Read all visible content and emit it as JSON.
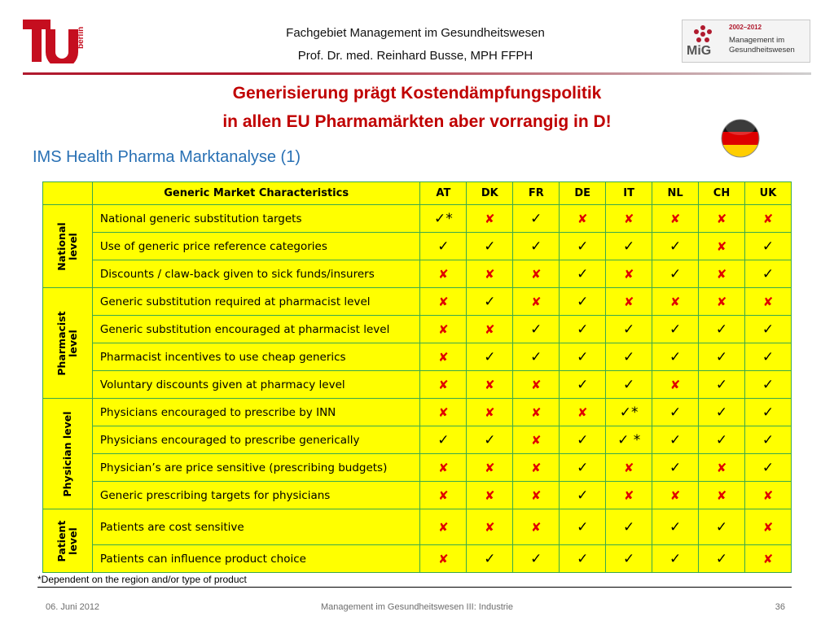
{
  "header": {
    "line1": "Fachgebiet Management im Gesundheitswesen",
    "line2": "Prof. Dr. med. Reinhard Busse, MPH FFPH",
    "tu_logo_text": "berlin",
    "mig_logo": {
      "years": "2002–2012",
      "name_line1": "Management im",
      "name_line2": "Gesundheitswesen",
      "short": "MiG"
    }
  },
  "title": {
    "line1": "Generisierung prägt Kostendämpfungspolitik",
    "line2": "in allen EU Pharmamärkten aber vorrangig in D!"
  },
  "subtitle": "IMS Health Pharma Marktanalyse (1)",
  "colors": {
    "title_red": "#c00000",
    "subtitle_blue": "#2870b4",
    "table_fill": "#ffff00",
    "table_border": "#3aa94c",
    "cross_red": "#e00000"
  },
  "table": {
    "header": {
      "characteristics": "Generic Market Characteristics",
      "countries": [
        "AT",
        "DK",
        "FR",
        "DE",
        "IT",
        "NL",
        "CH",
        "UK"
      ]
    },
    "groups": {
      "national": "National\nlevel",
      "pharmacist": "Pharmacist\nlevel",
      "physician": "Physician level",
      "patient": "Patient\nlevel"
    },
    "symbols": {
      "check": "✓",
      "cross": "✘",
      "check_star": "✓*",
      "check_space_star": "✓ *"
    },
    "rows": [
      {
        "label": "National generic substitution targets",
        "marks": [
          "✓*",
          "✘",
          "✓",
          "✘",
          "✘",
          "✘",
          "✘",
          "✘"
        ]
      },
      {
        "label": "Use of generic price reference categories",
        "marks": [
          "✓",
          "✓",
          "✓",
          "✓",
          "✓",
          "✓",
          "✘",
          "✓"
        ]
      },
      {
        "label": "Discounts / claw-back given to sick funds/insurers",
        "marks": [
          "✘",
          "✘",
          "✘",
          "✓",
          "✘",
          "✓",
          "✘",
          "✓"
        ]
      },
      {
        "label": "Generic substitution required at pharmacist level",
        "marks": [
          "✘",
          "✓",
          "✘",
          "✓",
          "✘",
          "✘",
          "✘",
          "✘"
        ]
      },
      {
        "label": "Generic substitution encouraged at pharmacist level",
        "marks": [
          "✘",
          "✘",
          "✓",
          "✓",
          "✓",
          "✓",
          "✓",
          "✓"
        ]
      },
      {
        "label": "Pharmacist incentives to use cheap generics",
        "marks": [
          "✘",
          "✓",
          "✓",
          "✓",
          "✓",
          "✓",
          "✓",
          "✓"
        ]
      },
      {
        "label": "Voluntary discounts given at pharmacy level",
        "marks": [
          "✘",
          "✘",
          "✘",
          "✓",
          "✓",
          "✘",
          "✓",
          "✓"
        ]
      },
      {
        "label": "Physicians encouraged to prescribe by INN",
        "marks": [
          "✘",
          "✘",
          "✘",
          "✘",
          "✓*",
          "✓",
          "✓",
          "✓"
        ]
      },
      {
        "label": "Physicians encouraged to prescribe generically",
        "marks": [
          "✓",
          "✓",
          "✘",
          "✓",
          "✓ *",
          "✓",
          "✓",
          "✓"
        ]
      },
      {
        "label": "Physician’s are price sensitive (prescribing budgets)",
        "marks": [
          "✘",
          "✘",
          "✘",
          "✓",
          "✘",
          "✓",
          "✘",
          "✓"
        ]
      },
      {
        "label": "Generic prescribing targets for physicians",
        "marks": [
          "✘",
          "✘",
          "✘",
          "✓",
          "✘",
          "✘",
          "✘",
          "✘"
        ]
      },
      {
        "label": "Patients are cost sensitive",
        "marks": [
          "✘",
          "✘",
          "✘",
          "✓",
          "✓",
          "✓",
          "✓",
          "✘"
        ]
      },
      {
        "label": "Patients can influence product choice",
        "marks": [
          "✘",
          "✓",
          "✓",
          "✓",
          "✓",
          "✓",
          "✓",
          "✘"
        ]
      }
    ]
  },
  "footnote": "*Dependent on the region and/or type of product",
  "footer": {
    "date": "06. Juni 2012",
    "center": "Management im Gesundheitswesen III: Industrie",
    "page": "36"
  }
}
